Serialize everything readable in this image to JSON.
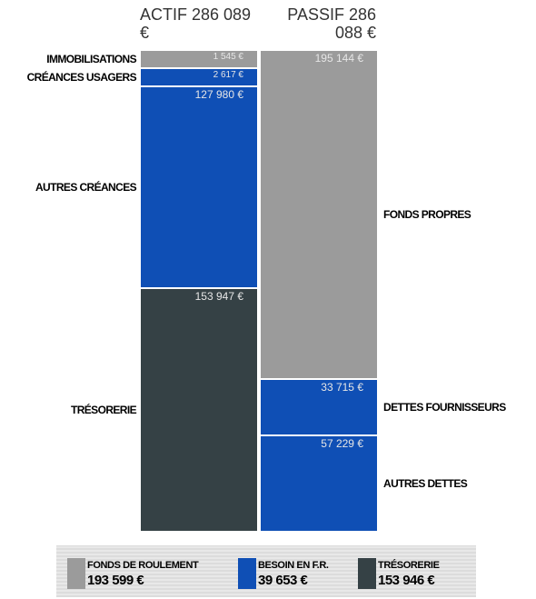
{
  "chart_data": {
    "type": "bar",
    "stacked": true,
    "columns": [
      {
        "label": "ACTIF 286 089 €",
        "segments": [
          {
            "name": "IMMOBILISATIONS",
            "color": "#9b9b9b",
            "value": 1545,
            "value_label": "1 545 €"
          },
          {
            "name": "CRÉANCES USAGERS",
            "color": "#0f4fb5",
            "value": 2617,
            "value_label": "2 617 €"
          },
          {
            "name": "AUTRES CRÉANCES",
            "color": "#0f4fb5",
            "value": 127980,
            "value_label": "127 980 €"
          },
          {
            "name": "TRÉSORERIE",
            "color": "#354145",
            "value": 153947,
            "value_label": "153 947 €"
          }
        ]
      },
      {
        "label": "PASSIF 286 088 €",
        "segments": [
          {
            "name": "FONDS PROPRES",
            "color": "#9b9b9b",
            "value": 195144,
            "value_label": "195 144 €"
          },
          {
            "name": "DETTES FOURNISSEURS",
            "color": "#0f4fb5",
            "value": 33715,
            "value_label": "33 715 €"
          },
          {
            "name": "AUTRES DETTES",
            "color": "#0f4fb5",
            "value": 57229,
            "value_label": "57 229 €"
          }
        ]
      }
    ],
    "legend": [
      {
        "name": "FONDS DE ROULEMENT",
        "color": "#9b9b9b",
        "value": 193599,
        "value_label": "193 599 €"
      },
      {
        "name": "BESOIN EN F.R.",
        "color": "#0f4fb5",
        "value": 39653,
        "value_label": "39 653 €"
      },
      {
        "name": "TRÉSORERIE",
        "color": "#354145",
        "value": 153946,
        "value_label": "153 946 €"
      }
    ]
  }
}
